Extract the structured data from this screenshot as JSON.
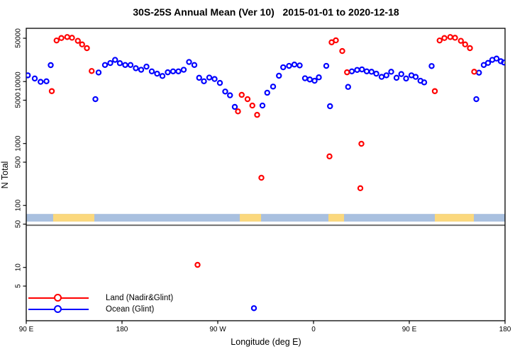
{
  "chart_data": {
    "type": "scatter",
    "title": "30S-25S Annual Mean (Ver 10)   2015-01-01 to 2020-12-18",
    "xlabel": "Longitude (deg E)",
    "ylabel": "N Total",
    "marker": {
      "shape": "open-circle",
      "radius": 3.1,
      "stroke_width": 2.2
    },
    "x_axis": {
      "range": [
        90,
        540
      ],
      "note": "longitude in deg E increasing eastward, wrapping past the dateline (450=90E, 540=180)",
      "ticks": [
        {
          "value": 90,
          "label": "90 E"
        },
        {
          "value": 180,
          "label": "180"
        },
        {
          "value": 270,
          "label": "90 W"
        },
        {
          "value": 360,
          "label": "0"
        },
        {
          "value": 450,
          "label": "90 E"
        },
        {
          "value": 540,
          "label": "180"
        }
      ]
    },
    "y_axis": {
      "scale": "log",
      "range": [
        1.38,
        72300
      ],
      "ticks": [
        {
          "value": 50000,
          "label": "50000"
        },
        {
          "value": 10000,
          "label": "10000"
        },
        {
          "value": 5000,
          "label": "5000"
        },
        {
          "value": 1000,
          "label": "1000"
        },
        {
          "value": 500,
          "label": "500"
        },
        {
          "value": 100,
          "label": "100"
        },
        {
          "value": 50,
          "label": "50"
        },
        {
          "value": 10,
          "label": "10"
        },
        {
          "value": 5,
          "label": "5"
        }
      ]
    },
    "reference_line": {
      "value": 48,
      "color": "#707070",
      "width": 2
    },
    "map_strip": {
      "comment": "land/ocean longitude strip drawn across the plot",
      "value_top": 73,
      "value_bottom": 55,
      "ocean_color": "#a9c0df",
      "land_color": "#fbd87d",
      "land_segments_lon": [
        [
          115.3,
          154
        ],
        [
          290.7,
          310.7
        ],
        [
          374,
          388.7
        ],
        [
          474,
          510.7
        ]
      ]
    },
    "legend": {
      "position": "bottom-left",
      "entries": [
        {
          "label": "Land (Nadir&Glint)",
          "color": "#ff0000"
        },
        {
          "label": "Ocean (Glint)",
          "color": "#0000ff"
        }
      ]
    },
    "series": [
      {
        "name": "Ocean (Glint)",
        "color": "#0000ff",
        "points": [
          [
            91.5,
            12600
          ],
          [
            98,
            11200
          ],
          [
            103.5,
            9900
          ],
          [
            109,
            10100
          ],
          [
            113,
            18400
          ],
          [
            155,
            5200
          ],
          [
            158,
            14000
          ],
          [
            164,
            18500
          ],
          [
            169,
            19900
          ],
          [
            173.5,
            22400
          ],
          [
            178,
            19800
          ],
          [
            183,
            18500
          ],
          [
            188,
            18500
          ],
          [
            193,
            16400
          ],
          [
            198,
            15500
          ],
          [
            203,
            17400
          ],
          [
            208,
            14600
          ],
          [
            213,
            13400
          ],
          [
            218,
            12300
          ],
          [
            223,
            14100
          ],
          [
            228,
            14600
          ],
          [
            233,
            14600
          ],
          [
            238,
            15500
          ],
          [
            243,
            20700
          ],
          [
            248,
            18500
          ],
          [
            252.5,
            11500
          ],
          [
            257,
            10100
          ],
          [
            262,
            11600
          ],
          [
            267,
            11000
          ],
          [
            272,
            9500
          ],
          [
            277,
            6900
          ],
          [
            281.5,
            6000
          ],
          [
            286,
            3900
          ],
          [
            304,
            2.2
          ],
          [
            312,
            4100
          ],
          [
            316.5,
            6600
          ],
          [
            322,
            8300
          ],
          [
            327.5,
            12400
          ],
          [
            331.5,
            17000
          ],
          [
            337,
            17900
          ],
          [
            342,
            18800
          ],
          [
            347,
            18200
          ],
          [
            352,
            11300
          ],
          [
            356.5,
            10800
          ],
          [
            361,
            10300
          ],
          [
            365,
            11700
          ],
          [
            372,
            17900
          ],
          [
            375.5,
            4000
          ],
          [
            392.5,
            8200
          ],
          [
            396,
            14600
          ],
          [
            401,
            15400
          ],
          [
            405.5,
            15700
          ],
          [
            410,
            14600
          ],
          [
            414.5,
            14400
          ],
          [
            419,
            13400
          ],
          [
            424,
            11900
          ],
          [
            428.5,
            12600
          ],
          [
            433,
            14400
          ],
          [
            438,
            11500
          ],
          [
            442.5,
            13200
          ],
          [
            447,
            11200
          ],
          [
            452,
            12600
          ],
          [
            456,
            11900
          ],
          [
            460.5,
            10300
          ],
          [
            464,
            9700
          ],
          [
            471,
            17800
          ],
          [
            513,
            5200
          ],
          [
            515.5,
            13900
          ],
          [
            520,
            18500
          ],
          [
            524,
            20000
          ],
          [
            528,
            22400
          ],
          [
            532,
            23500
          ],
          [
            536,
            21300
          ],
          [
            539,
            20300
          ]
        ]
      },
      {
        "name": "Land (Nadir&Glint)",
        "color": "#ff0000",
        "points": [
          [
            114,
            7000
          ],
          [
            118.5,
            46000
          ],
          [
            123,
            50400
          ],
          [
            128.5,
            52300
          ],
          [
            133,
            50900
          ],
          [
            138.5,
            45400
          ],
          [
            142.5,
            39800
          ],
          [
            147,
            34600
          ],
          [
            151.5,
            14800
          ],
          [
            251,
            11
          ],
          [
            289,
            3300
          ],
          [
            292.5,
            6100
          ],
          [
            298,
            5200
          ],
          [
            302.5,
            4100
          ],
          [
            307,
            2900
          ],
          [
            311,
            280
          ],
          [
            375,
            620
          ],
          [
            377,
            43000
          ],
          [
            381,
            46300
          ],
          [
            387,
            31100
          ],
          [
            391.5,
            14100
          ],
          [
            404,
            190
          ],
          [
            405,
            990
          ],
          [
            474,
            7000
          ],
          [
            478.5,
            46000
          ],
          [
            483,
            50400
          ],
          [
            488.5,
            52300
          ],
          [
            493,
            50900
          ],
          [
            498.5,
            45400
          ],
          [
            502.5,
            39800
          ],
          [
            507,
            34600
          ],
          [
            511,
            14400
          ]
        ]
      }
    ]
  }
}
